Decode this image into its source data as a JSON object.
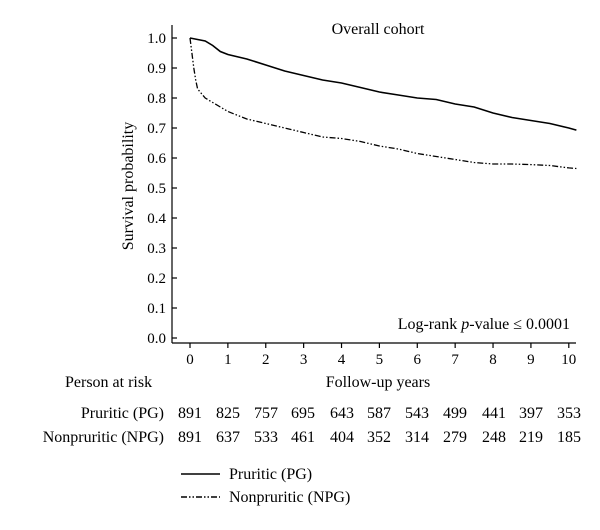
{
  "chart_data": {
    "type": "line",
    "title": "Overall cohort",
    "xlabel": "Follow-up years",
    "ylabel": "Survival probability",
    "xlim": [
      0,
      10.2
    ],
    "ylim": [
      0,
      1.0
    ],
    "xticks": [
      "0",
      "1",
      "2",
      "3",
      "4",
      "5",
      "6",
      "7",
      "8",
      "9",
      "10"
    ],
    "yticks": [
      "0.0",
      "0.1",
      "0.2",
      "0.3",
      "0.4",
      "0.5",
      "0.6",
      "0.7",
      "0.8",
      "0.9",
      "1.0"
    ],
    "annotation": {
      "prefix": "Log-rank ",
      "italic": "p",
      "suffix": "-value ≤ 0.0001"
    },
    "grid": false,
    "legend_position": "bottom-left, below plot",
    "series": [
      {
        "name": "Pruritic (PG)",
        "line_style": "solid",
        "color": "#000000",
        "x": [
          0,
          0.2,
          0.4,
          0.6,
          0.8,
          1.0,
          1.5,
          2.0,
          2.5,
          3.0,
          3.5,
          4.0,
          4.5,
          5.0,
          5.5,
          6.0,
          6.5,
          7.0,
          7.5,
          8.0,
          8.5,
          9.0,
          9.5,
          10.0,
          10.2
        ],
        "y": [
          1.0,
          0.995,
          0.99,
          0.975,
          0.955,
          0.945,
          0.93,
          0.91,
          0.89,
          0.875,
          0.86,
          0.85,
          0.835,
          0.82,
          0.81,
          0.8,
          0.795,
          0.78,
          0.77,
          0.75,
          0.735,
          0.725,
          0.715,
          0.7,
          0.693
        ]
      },
      {
        "name": "Nonpruritic (NPG)",
        "line_style": "dash-dot-dot",
        "color": "#000000",
        "x": [
          0,
          0.05,
          0.1,
          0.15,
          0.2,
          0.3,
          0.4,
          0.6,
          0.8,
          1.0,
          1.5,
          2.0,
          2.5,
          3.0,
          3.5,
          4.0,
          4.5,
          5.0,
          5.5,
          6.0,
          6.5,
          7.0,
          7.5,
          8.0,
          8.5,
          9.0,
          9.5,
          10.0,
          10.2
        ],
        "y": [
          1.0,
          0.95,
          0.9,
          0.86,
          0.83,
          0.815,
          0.8,
          0.785,
          0.77,
          0.755,
          0.73,
          0.715,
          0.7,
          0.685,
          0.67,
          0.665,
          0.655,
          0.64,
          0.63,
          0.615,
          0.605,
          0.595,
          0.585,
          0.58,
          0.58,
          0.578,
          0.575,
          0.567,
          0.565
        ]
      }
    ]
  },
  "risk_table": {
    "header": "Person at risk",
    "rows": [
      {
        "label": "Pruritic (PG)",
        "values": [
          "891",
          "825",
          "757",
          "695",
          "643",
          "587",
          "543",
          "499",
          "441",
          "397",
          "353"
        ]
      },
      {
        "label": "Nonpruritic (NPG)",
        "values": [
          "891",
          "637",
          "533",
          "461",
          "404",
          "352",
          "314",
          "279",
          "248",
          "219",
          "185"
        ]
      }
    ]
  },
  "legend": [
    {
      "label": "Pruritic (PG)",
      "style": "solid"
    },
    {
      "label": "Nonpruritic (NPG)",
      "style": "dash-dot-dot"
    }
  ]
}
